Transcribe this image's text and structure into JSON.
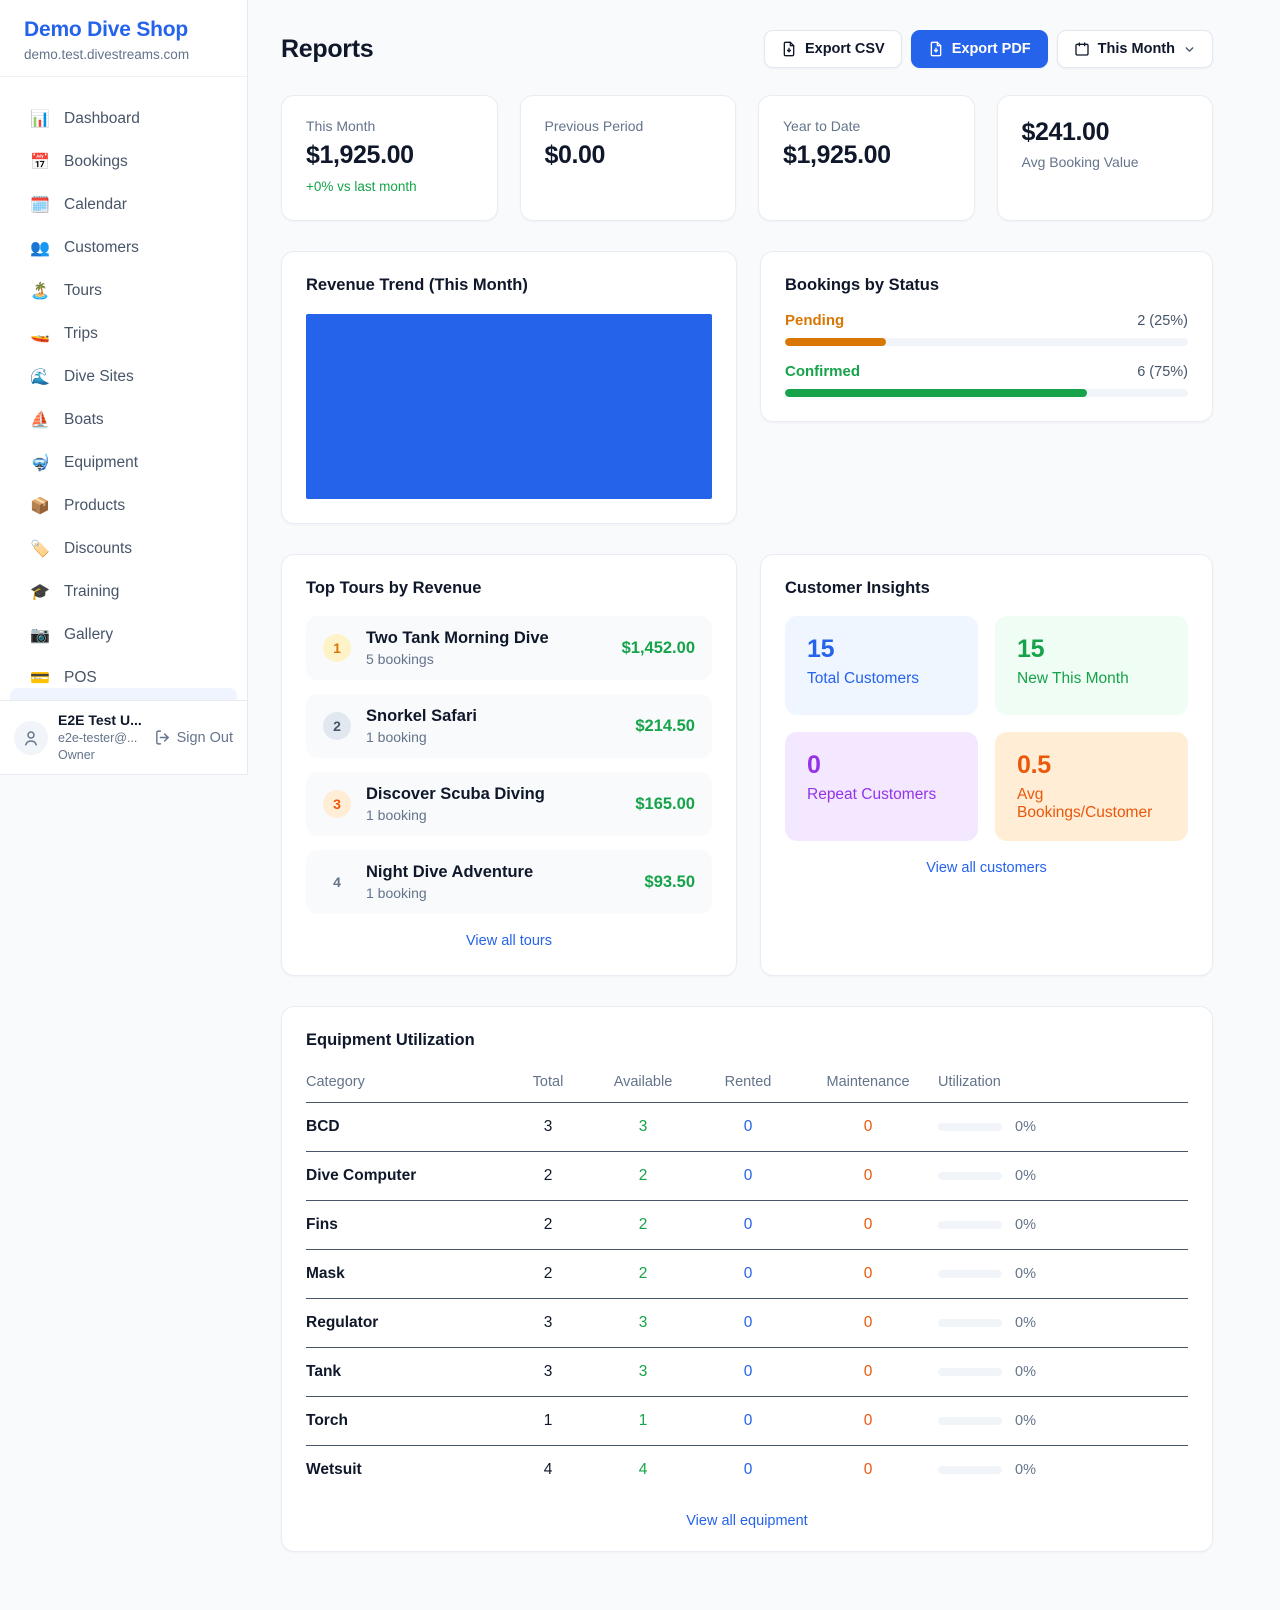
{
  "colors": {
    "accent": "#2563eb",
    "green": "#16a34a",
    "amber": "#d97706",
    "orange": "#ea580c",
    "purple": "#9333ea"
  },
  "sidebar": {
    "shop_name": "Demo Dive Shop",
    "shop_domain": "demo.test.divestreams.com",
    "items": [
      {
        "icon": "📊",
        "label": "Dashboard"
      },
      {
        "icon": "📅",
        "label": "Bookings"
      },
      {
        "icon": "🗓️",
        "label": "Calendar"
      },
      {
        "icon": "👥",
        "label": "Customers"
      },
      {
        "icon": "🏝️",
        "label": "Tours"
      },
      {
        "icon": "🚤",
        "label": "Trips"
      },
      {
        "icon": "🌊",
        "label": "Dive Sites"
      },
      {
        "icon": "⛵",
        "label": "Boats"
      },
      {
        "icon": "🤿",
        "label": "Equipment"
      },
      {
        "icon": "📦",
        "label": "Products"
      },
      {
        "icon": "🏷️",
        "label": "Discounts"
      },
      {
        "icon": "🎓",
        "label": "Training"
      },
      {
        "icon": "📷",
        "label": "Gallery"
      },
      {
        "icon": "💳",
        "label": "POS"
      }
    ],
    "user": {
      "name": "E2E Test U...",
      "email": "e2e-tester@...",
      "role": "Owner",
      "sign_out": "Sign Out"
    }
  },
  "header": {
    "title": "Reports",
    "export_csv": "Export CSV",
    "export_pdf": "Export PDF",
    "period": "This Month"
  },
  "stats": [
    {
      "label": "This Month",
      "value": "$1,925.00",
      "sub": "+0% vs last month"
    },
    {
      "label": "Previous Period",
      "value": "$0.00"
    },
    {
      "label": "Year to Date",
      "value": "$1,925.00"
    },
    {
      "label": "Avg Booking Value",
      "value": "$241.00"
    }
  ],
  "revenue_trend": {
    "title": "Revenue Trend (This Month)",
    "chart_data": {
      "type": "bar",
      "categories": [
        "This Month"
      ],
      "values": [
        1925
      ],
      "bar_color": "#2563eb",
      "axes_visible": false
    }
  },
  "bookings_by_status": {
    "title": "Bookings by Status",
    "rows": [
      {
        "label": "Pending",
        "value": "2 (25%)",
        "pct": 25,
        "color": "#d97706"
      },
      {
        "label": "Confirmed",
        "value": "6 (75%)",
        "pct": 75,
        "color": "#16a34a"
      }
    ]
  },
  "top_tours": {
    "title": "Top Tours by Revenue",
    "view_all": "View all tours",
    "items": [
      {
        "rank": "1",
        "name": "Two Tank Morning Dive",
        "bookings": "5 bookings",
        "revenue": "$1,452.00",
        "rank_color": "#d97706",
        "rank_bg": "#fef3c7"
      },
      {
        "rank": "2",
        "name": "Snorkel Safari",
        "bookings": "1 booking",
        "revenue": "$214.50",
        "rank_color": "#475569",
        "rank_bg": "#e2e8f0"
      },
      {
        "rank": "3",
        "name": "Discover Scuba Diving",
        "bookings": "1 booking",
        "revenue": "$165.00",
        "rank_color": "#ea580c",
        "rank_bg": "#ffedd5"
      },
      {
        "rank": "4",
        "name": "Night Dive Adventure",
        "bookings": "1 booking",
        "revenue": "$93.50",
        "rank_color": "#64748b",
        "rank_bg": "transparent"
      }
    ]
  },
  "customer_insights": {
    "title": "Customer Insights",
    "view_all": "View all customers",
    "tiles": [
      {
        "value": "15",
        "label": "Total Customers",
        "color": "#2563eb",
        "bg": "#eff6ff"
      },
      {
        "value": "15",
        "label": "New This Month",
        "color": "#16a34a",
        "bg": "#f0fdf4"
      },
      {
        "value": "0",
        "label": "Repeat Customers",
        "color": "#9333ea",
        "bg": "#f3e8ff"
      },
      {
        "value": "0.5",
        "label": "Avg Bookings/Customer",
        "color": "#ea580c",
        "bg": "#ffedd5"
      }
    ]
  },
  "equipment": {
    "title": "Equipment Utilization",
    "view_all": "View all equipment",
    "columns": [
      "Category",
      "Total",
      "Available",
      "Rented",
      "Maintenance",
      "Utilization"
    ],
    "rows": [
      {
        "category": "BCD",
        "total": "3",
        "available": "3",
        "rented": "0",
        "maintenance": "0",
        "utilization": "0%",
        "pct": 0
      },
      {
        "category": "Dive Computer",
        "total": "2",
        "available": "2",
        "rented": "0",
        "maintenance": "0",
        "utilization": "0%",
        "pct": 0
      },
      {
        "category": "Fins",
        "total": "2",
        "available": "2",
        "rented": "0",
        "maintenance": "0",
        "utilization": "0%",
        "pct": 0
      },
      {
        "category": "Mask",
        "total": "2",
        "available": "2",
        "rented": "0",
        "maintenance": "0",
        "utilization": "0%",
        "pct": 0
      },
      {
        "category": "Regulator",
        "total": "3",
        "available": "3",
        "rented": "0",
        "maintenance": "0",
        "utilization": "0%",
        "pct": 0
      },
      {
        "category": "Tank",
        "total": "3",
        "available": "3",
        "rented": "0",
        "maintenance": "0",
        "utilization": "0%",
        "pct": 0
      },
      {
        "category": "Torch",
        "total": "1",
        "available": "1",
        "rented": "0",
        "maintenance": "0",
        "utilization": "0%",
        "pct": 0
      },
      {
        "category": "Wetsuit",
        "total": "4",
        "available": "4",
        "rented": "0",
        "maintenance": "0",
        "utilization": "0%",
        "pct": 0
      }
    ]
  }
}
